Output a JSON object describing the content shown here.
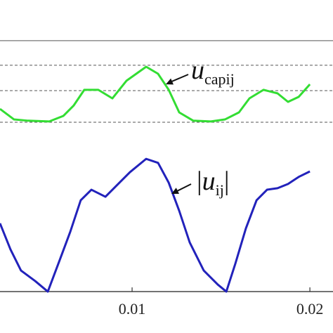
{
  "chart_data": {
    "type": "line",
    "xlim": [
      0.00257,
      0.0213
    ],
    "ylim": [
      -0.165,
      1.162
    ],
    "xticks": [
      0.01,
      0.02
    ],
    "hlines": [
      {
        "value": 1,
        "style": "solid"
      },
      {
        "value": 0.902,
        "style": "dashed"
      },
      {
        "value": 0.801,
        "style": "dashed"
      },
      {
        "value": 0.675,
        "style": "dashed"
      }
    ],
    "series": [
      {
        "color": "#33dd33",
        "x": [
          0.00257,
          0.00336,
          0.00415,
          0.00534,
          0.00613,
          0.00672,
          0.00731,
          0.0081,
          0.00889,
          0.00968,
          0.01079,
          0.01146,
          0.01206,
          0.01265,
          0.01344,
          0.01443,
          0.01522,
          0.01601,
          0.0166,
          0.01739,
          0.01818,
          0.01877,
          0.01937,
          0.02
        ],
        "values": [
          0.728,
          0.686,
          0.681,
          0.678,
          0.7,
          0.742,
          0.804,
          0.804,
          0.77,
          0.84,
          0.896,
          0.868,
          0.804,
          0.714,
          0.681,
          0.678,
          0.686,
          0.714,
          0.77,
          0.804,
          0.79,
          0.756,
          0.776,
          0.826
        ]
      },
      {
        "color": "#2222bb",
        "x": [
          0.00257,
          0.00316,
          0.00375,
          0.00455,
          0.00526,
          0.00593,
          0.00652,
          0.00711,
          0.00771,
          0.0085,
          0.00909,
          0.00988,
          0.01079,
          0.01146,
          0.01206,
          0.01265,
          0.01324,
          0.01403,
          0.01482,
          0.0153,
          0.01581,
          0.0164,
          0.017,
          0.01759,
          0.01818,
          0.01877,
          0.01937,
          0.02
        ],
        "values": [
          0.272,
          0.168,
          0.084,
          0.042,
          0,
          0.126,
          0.238,
          0.364,
          0.406,
          0.378,
          0.42,
          0.476,
          0.529,
          0.513,
          0.434,
          0.322,
          0.196,
          0.084,
          0.028,
          0,
          0.112,
          0.252,
          0.364,
          0.406,
          0.412,
          0.429,
          0.457,
          0.479
        ]
      }
    ],
    "annotations": [
      {
        "text": "u",
        "subscript": "capij"
      },
      {
        "prefix": "|",
        "text": "u",
        "subscript": "ij",
        "suffix": "|"
      }
    ]
  }
}
